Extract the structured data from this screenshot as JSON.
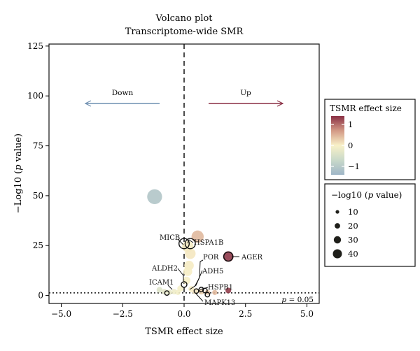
{
  "chart_data": {
    "type": "scatter",
    "title": "Volcano plot",
    "subtitle": "Transcriptome-wide SMR",
    "xlabel": "TSMR effect size",
    "ylabel": "−Log10 (p value)",
    "ylabel_parts": {
      "pre": "−Log10 (",
      "italic": "p",
      "post": " value)"
    },
    "xlim": [
      -5.5,
      5.5
    ],
    "ylim": [
      -4,
      126
    ],
    "xticks": [
      -5.0,
      -2.5,
      0.0,
      2.5,
      5.0
    ],
    "xtick_labels": [
      "−5.0",
      "−2.5",
      "0.0",
      "2.5",
      "5.0"
    ],
    "yticks": [
      0,
      25,
      50,
      75,
      100,
      125
    ],
    "ytick_labels": [
      "0",
      "25",
      "50",
      "75",
      "100",
      "125"
    ],
    "grid": false,
    "vline_x": 0,
    "threshold_y": 1.3,
    "threshold_label_parts": {
      "italic": "p",
      "post": " = 0.05"
    },
    "down_label": "Down",
    "up_label": "Up",
    "down_color": "#6e8fb0",
    "up_color": "#8a2f44",
    "points": [
      {
        "x": -1.2,
        "y": 49.5,
        "effect": -1.1
      },
      {
        "x": 0.55,
        "y": 29.5,
        "effect": 0.45
      },
      {
        "x": 0.15,
        "y": 24.5,
        "effect": 0.05
      },
      {
        "x": 0.25,
        "y": 21.0,
        "effect": 0.08
      },
      {
        "x": 1.8,
        "y": 19.5,
        "effect": 1.35
      },
      {
        "x": 0.2,
        "y": 15.0,
        "effect": 0.05
      },
      {
        "x": 0.15,
        "y": 12.0,
        "effect": 0.03
      },
      {
        "x": 0.1,
        "y": 7.5,
        "effect": 0.02
      },
      {
        "x": -0.15,
        "y": 3.5,
        "effect": -0.05
      },
      {
        "x": 0.3,
        "y": 3.2,
        "effect": 0.05
      },
      {
        "x": 1.8,
        "y": 2.5,
        "effect": 1.3
      },
      {
        "x": 1.25,
        "y": 1.5,
        "effect": 0.45
      },
      {
        "x": 0.95,
        "y": 1.6,
        "effect": 0.35
      },
      {
        "x": 0.7,
        "y": 1.8,
        "effect": 0.25
      },
      {
        "x": 0.45,
        "y": 2.0,
        "effect": 0.12
      },
      {
        "x": -1.0,
        "y": 2.8,
        "effect": -0.4
      },
      {
        "x": -0.8,
        "y": 1.9,
        "effect": -0.32
      },
      {
        "x": -0.6,
        "y": 1.6,
        "effect": -0.22
      },
      {
        "x": -0.4,
        "y": 1.9,
        "effect": -0.15
      },
      {
        "x": -0.25,
        "y": 1.5,
        "effect": -0.08
      }
    ],
    "highlighted": [
      {
        "label": "MICB",
        "x": 0.0,
        "y": 26.0
      },
      {
        "label": "HSPA1B",
        "x": 0.25,
        "y": 26.0
      },
      {
        "label": "AGER",
        "x": 1.8,
        "y": 19.5
      },
      {
        "label": "POR",
        "x": 0.7,
        "y": 3.0
      },
      {
        "label": "ALDH2",
        "x": 0.0,
        "y": 5.5
      },
      {
        "label": "ADH5",
        "x": 0.5,
        "y": 2.2
      },
      {
        "label": "HSPB1",
        "x": 0.85,
        "y": 2.5
      },
      {
        "label": "ICAM1",
        "x": -0.7,
        "y": 1.2
      },
      {
        "label": "MAPK13",
        "x": 0.95,
        "y": 0.4
      }
    ],
    "color_legend": {
      "title": "TSMR effect size",
      "ticks": [
        1,
        0,
        -1
      ],
      "tick_labels": [
        "1",
        "0",
        "−1"
      ],
      "range": [
        -1.4,
        1.4
      ],
      "stops": [
        "#8a2f44",
        "#d39a86",
        "#f8f1c8",
        "#c9d9c9",
        "#9fb6c8"
      ]
    },
    "size_legend": {
      "title_parts": {
        "pre": "−log10 (",
        "italic": "p",
        "post": " value)"
      },
      "values": [
        10,
        20,
        30,
        40
      ],
      "labels": [
        "10",
        "20",
        "30",
        "40"
      ]
    }
  }
}
